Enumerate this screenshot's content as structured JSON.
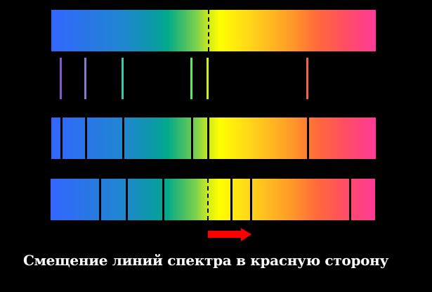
{
  "caption": "Смещение линий спектра в красную сторону",
  "colors": {
    "background": "#000000",
    "arrow": "#ff0000",
    "absorption_line": "#000000"
  },
  "spectrum_scale": "arbitrary position 0 (blue end) to 100 (red end)",
  "reference_position": 48.5,
  "emission_lines": [
    {
      "position": 3.0,
      "color": "#8855cc"
    },
    {
      "position": 10.6,
      "color": "#8877cc"
    },
    {
      "position": 21.9,
      "color": "#33ccaa"
    },
    {
      "position": 43.1,
      "color": "#55ee55"
    },
    {
      "position": 48.1,
      "color": "#ccee22"
    },
    {
      "position": 79.0,
      "color": "#ee6644"
    }
  ],
  "rest_absorption_lines": [
    3.2,
    10.8,
    22.1,
    43.3,
    48.3,
    79.2
  ],
  "shifted_absorption_lines": [
    15.2,
    23.4,
    34.8,
    55.8,
    61.7,
    92.4
  ]
}
